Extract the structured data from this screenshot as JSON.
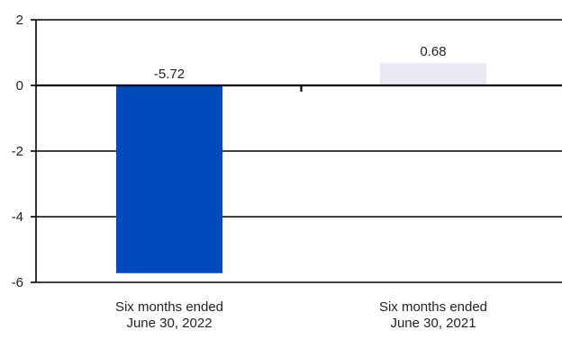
{
  "chart_data": {
    "type": "bar",
    "title": "",
    "xlabel": "",
    "ylabel": "",
    "categories": [
      [
        "Six months ended",
        "June 30, 2022"
      ],
      [
        "Six months ended",
        "June 30, 2021"
      ]
    ],
    "values": [
      -5.72,
      0.68
    ],
    "value_labels": [
      "-5.72",
      "0.68"
    ],
    "bar_colors": [
      "#004bbb",
      "#e9e9f6"
    ],
    "ylim": [
      -6,
      2
    ],
    "yticks": [
      2,
      0,
      -2,
      -4,
      -6
    ],
    "ytick_labels": [
      "2",
      "0",
      "-2",
      "-4",
      "-6"
    ],
    "grid": "horizontal",
    "legend": "none"
  },
  "colors": {
    "axis": "#000000",
    "text": "#222222"
  }
}
